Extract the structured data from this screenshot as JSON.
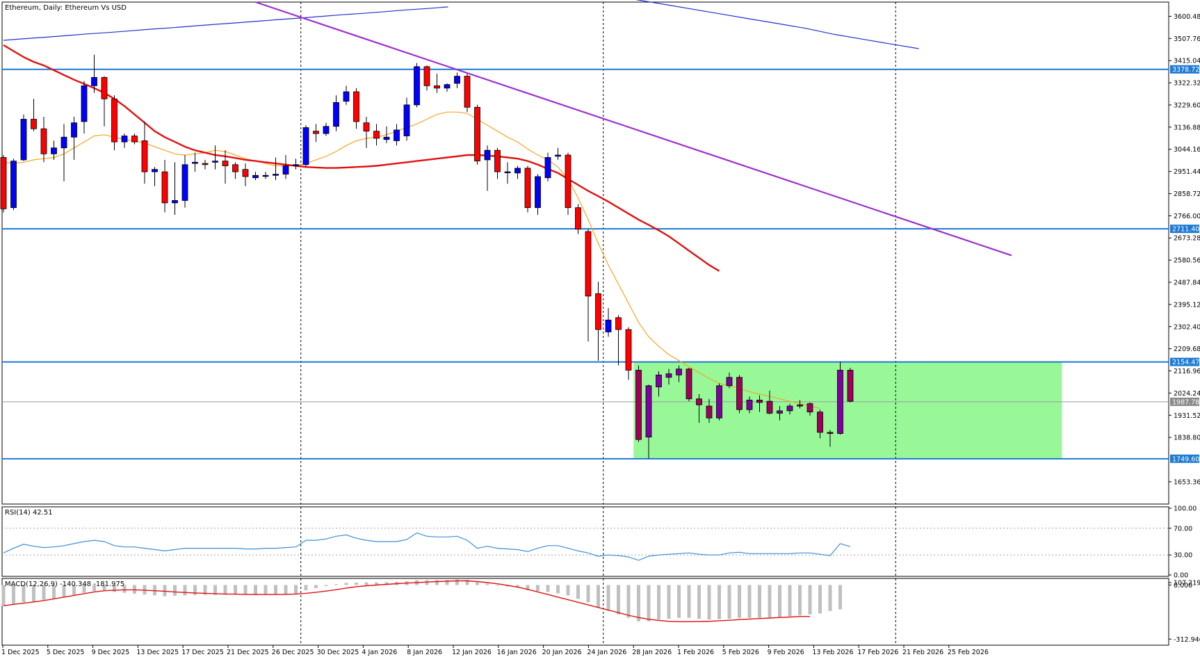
{
  "header": {
    "title": "Ethereum, Daily:  Ethereum Vs USD"
  },
  "colors": {
    "bull": "#0000ff",
    "bear": "#ff0000",
    "bull_zone": "#8000a0",
    "bear_zone": "#a0005a",
    "ma_fast": "#f5a623",
    "ma_slow": "#e01010",
    "ma_long": "#2030c8",
    "trendline": "#9a30d0",
    "level": "#1e7ad2",
    "zone": "#98f898",
    "rsi": "#3a8fd8",
    "macd_hist": "#c0c0c0",
    "macd_signal": "#e01010",
    "price_tag": "#1e7ad2"
  },
  "chart_data": [
    {
      "type": "candlestick",
      "title": "Ethereum, Daily:  Ethereum Vs USD",
      "ylim": [
        1560,
        3660
      ],
      "y_ticks": [
        "3600.48",
        "3507.76",
        "3415.04",
        "3322.32",
        "3229.60",
        "3136.88",
        "3044.16",
        "2951.44",
        "2858.72",
        "2766.00",
        "2673.28",
        "2580.56",
        "2487.84",
        "2395.12",
        "2302.40",
        "2209.68",
        "2116.96",
        "2024.24",
        "1931.52",
        "1838.80",
        "1653.36"
      ],
      "x_tick_labels": [
        "1 Dec 2025",
        "5 Dec 2025",
        "9 Dec 2025",
        "13 Dec 2025",
        "17 Dec 2025",
        "21 Dec 2025",
        "26 Dec 2025",
        "30 Dec 2025",
        "4 Jan 2026",
        "8 Jan 2026",
        "12 Jan 2026",
        "16 Jan 2026",
        "20 Jan 2026",
        "24 Jan 2026",
        "28 Jan 2026",
        "1 Feb 2026",
        "5 Feb 2026",
        "9 Feb 2026",
        "13 Feb 2026",
        "17 Feb 2026",
        "21 Feb 2026",
        "25 Feb 2026"
      ],
      "candles": [
        {
          "o": 3010,
          "h": 3020,
          "l": 2780,
          "c": 2795
        },
        {
          "o": 2800,
          "h": 3005,
          "l": 2790,
          "c": 2995
        },
        {
          "o": 3000,
          "h": 3190,
          "l": 2995,
          "c": 3170
        },
        {
          "o": 3170,
          "h": 3255,
          "l": 3120,
          "c": 3130
        },
        {
          "o": 3130,
          "h": 3180,
          "l": 2990,
          "c": 3025
        },
        {
          "o": 3025,
          "h": 3080,
          "l": 3000,
          "c": 3050
        },
        {
          "o": 3050,
          "h": 3150,
          "l": 2910,
          "c": 3095
        },
        {
          "o": 3095,
          "h": 3180,
          "l": 3000,
          "c": 3155
        },
        {
          "o": 3160,
          "h": 3330,
          "l": 3110,
          "c": 3310
        },
        {
          "o": 3310,
          "h": 3440,
          "l": 3280,
          "c": 3345
        },
        {
          "o": 3345,
          "h": 3350,
          "l": 3140,
          "c": 3255
        },
        {
          "o": 3255,
          "h": 3270,
          "l": 3040,
          "c": 3075
        },
        {
          "o": 3075,
          "h": 3110,
          "l": 3050,
          "c": 3100
        },
        {
          "o": 3100,
          "h": 3110,
          "l": 3065,
          "c": 3075
        },
        {
          "o": 3080,
          "h": 3160,
          "l": 2900,
          "c": 2950
        },
        {
          "o": 2950,
          "h": 2970,
          "l": 2890,
          "c": 2960
        },
        {
          "o": 2950,
          "h": 3000,
          "l": 2780,
          "c": 2820
        },
        {
          "o": 2820,
          "h": 2990,
          "l": 2770,
          "c": 2830
        },
        {
          "o": 2830,
          "h": 3020,
          "l": 2800,
          "c": 2980
        },
        {
          "o": 2985,
          "h": 3030,
          "l": 2950,
          "c": 2990
        },
        {
          "o": 2985,
          "h": 3000,
          "l": 2960,
          "c": 2980
        },
        {
          "o": 2990,
          "h": 3060,
          "l": 2960,
          "c": 2995
        },
        {
          "o": 2995,
          "h": 3040,
          "l": 2900,
          "c": 2975
        },
        {
          "o": 2980,
          "h": 2990,
          "l": 2920,
          "c": 2950
        },
        {
          "o": 2960,
          "h": 2985,
          "l": 2890,
          "c": 2930
        },
        {
          "o": 2925,
          "h": 2950,
          "l": 2915,
          "c": 2935
        },
        {
          "o": 2935,
          "h": 2950,
          "l": 2920,
          "c": 2935
        },
        {
          "o": 2935,
          "h": 3010,
          "l": 2915,
          "c": 2940
        },
        {
          "o": 2940,
          "h": 3020,
          "l": 2920,
          "c": 2975
        },
        {
          "o": 2975,
          "h": 3005,
          "l": 2960,
          "c": 2980
        },
        {
          "o": 2980,
          "h": 3145,
          "l": 2970,
          "c": 3135
        },
        {
          "o": 3120,
          "h": 3150,
          "l": 3075,
          "c": 3110
        },
        {
          "o": 3110,
          "h": 3155,
          "l": 3100,
          "c": 3140
        },
        {
          "o": 3140,
          "h": 3270,
          "l": 3120,
          "c": 3240
        },
        {
          "o": 3245,
          "h": 3310,
          "l": 3230,
          "c": 3285
        },
        {
          "o": 3285,
          "h": 3300,
          "l": 3130,
          "c": 3160
        },
        {
          "o": 3155,
          "h": 3180,
          "l": 3050,
          "c": 3120
        },
        {
          "o": 3120,
          "h": 3150,
          "l": 3060,
          "c": 3090
        },
        {
          "o": 3085,
          "h": 3140,
          "l": 3070,
          "c": 3095
        },
        {
          "o": 3080,
          "h": 3150,
          "l": 3060,
          "c": 3125
        },
        {
          "o": 3100,
          "h": 3260,
          "l": 3080,
          "c": 3230
        },
        {
          "o": 3230,
          "h": 3405,
          "l": 3220,
          "c": 3390
        },
        {
          "o": 3390,
          "h": 3395,
          "l": 3290,
          "c": 3310
        },
        {
          "o": 3310,
          "h": 3360,
          "l": 3280,
          "c": 3300
        },
        {
          "o": 3300,
          "h": 3320,
          "l": 3285,
          "c": 3315
        },
        {
          "o": 3320,
          "h": 3365,
          "l": 3300,
          "c": 3350
        },
        {
          "o": 3350,
          "h": 3360,
          "l": 3200,
          "c": 3220
        },
        {
          "o": 3220,
          "h": 3230,
          "l": 2980,
          "c": 2995
        },
        {
          "o": 3000,
          "h": 3060,
          "l": 2870,
          "c": 3040
        },
        {
          "o": 3040,
          "h": 3050,
          "l": 2920,
          "c": 2950
        },
        {
          "o": 2950,
          "h": 2990,
          "l": 2900,
          "c": 2950
        },
        {
          "o": 2945,
          "h": 2975,
          "l": 2920,
          "c": 2965
        },
        {
          "o": 2965,
          "h": 2975,
          "l": 2780,
          "c": 2800
        },
        {
          "o": 2800,
          "h": 2940,
          "l": 2770,
          "c": 2930
        },
        {
          "o": 2925,
          "h": 3030,
          "l": 2910,
          "c": 3010
        },
        {
          "o": 3015,
          "h": 3050,
          "l": 3000,
          "c": 3020
        },
        {
          "o": 3020,
          "h": 3030,
          "l": 2770,
          "c": 2800
        },
        {
          "o": 2800,
          "h": 2815,
          "l": 2690,
          "c": 2710
        },
        {
          "o": 2700,
          "h": 2710,
          "l": 2240,
          "c": 2430
        },
        {
          "o": 2440,
          "h": 2490,
          "l": 2160,
          "c": 2290
        },
        {
          "o": 2280,
          "h": 2380,
          "l": 2260,
          "c": 2330
        },
        {
          "o": 2340,
          "h": 2350,
          "l": 2140,
          "c": 2290
        },
        {
          "o": 2290,
          "h": 2300,
          "l": 2080,
          "c": 2120
        },
        {
          "o": 2120,
          "h": 2140,
          "l": 1820,
          "c": 1830
        },
        {
          "o": 1840,
          "h": 2060,
          "l": 1750,
          "c": 2055
        },
        {
          "o": 2050,
          "h": 2115,
          "l": 2010,
          "c": 2100
        },
        {
          "o": 2090,
          "h": 2125,
          "l": 2060,
          "c": 2105
        },
        {
          "o": 2100,
          "h": 2140,
          "l": 2070,
          "c": 2125
        },
        {
          "o": 2125,
          "h": 2130,
          "l": 1990,
          "c": 2000
        },
        {
          "o": 2000,
          "h": 2020,
          "l": 1900,
          "c": 1975
        },
        {
          "o": 1970,
          "h": 2000,
          "l": 1900,
          "c": 1920
        },
        {
          "o": 1920,
          "h": 2065,
          "l": 1910,
          "c": 2055
        },
        {
          "o": 2055,
          "h": 2110,
          "l": 2045,
          "c": 2090
        },
        {
          "o": 2090,
          "h": 2100,
          "l": 1940,
          "c": 1955
        },
        {
          "o": 1955,
          "h": 2010,
          "l": 1940,
          "c": 1995
        },
        {
          "o": 1995,
          "h": 2015,
          "l": 1945,
          "c": 1985
        },
        {
          "o": 1990,
          "h": 2035,
          "l": 1935,
          "c": 1940
        },
        {
          "o": 1940,
          "h": 1970,
          "l": 1910,
          "c": 1950
        },
        {
          "o": 1950,
          "h": 1980,
          "l": 1935,
          "c": 1970
        },
        {
          "o": 1970,
          "h": 1995,
          "l": 1960,
          "c": 1975
        },
        {
          "o": 1980,
          "h": 1985,
          "l": 1930,
          "c": 1945
        },
        {
          "o": 1945,
          "h": 1955,
          "l": 1835,
          "c": 1860
        },
        {
          "o": 1860,
          "h": 1870,
          "l": 1800,
          "c": 1855
        },
        {
          "o": 1855,
          "h": 2155,
          "l": 1850,
          "c": 2120
        },
        {
          "o": 2120,
          "h": 2130,
          "l": 1985,
          "c": 1990
        }
      ],
      "ma_fast": [
        2990,
        2985,
        2990,
        3000,
        3005,
        3010,
        3025,
        3050,
        3075,
        3100,
        3105,
        3095,
        3085,
        3080,
        3070,
        3055,
        3040,
        3025,
        3020,
        3025,
        3030,
        3040,
        3035,
        3020,
        3005,
        2995,
        2985,
        2975,
        2975,
        2975,
        2985,
        3000,
        3015,
        3035,
        3060,
        3080,
        3090,
        3095,
        3105,
        3120,
        3135,
        3150,
        3170,
        3190,
        3200,
        3200,
        3195,
        3170,
        3145,
        3120,
        3095,
        3075,
        3045,
        3020,
        3000,
        2970,
        2920,
        2840,
        2750,
        2650,
        2560,
        2480,
        2400,
        2320,
        2260,
        2220,
        2185,
        2160,
        2135,
        2110,
        2085,
        2065,
        2055,
        2045,
        2030,
        2020,
        2010,
        2000,
        1990,
        1980,
        1970,
        1960
      ],
      "ma_slow": [
        3480,
        3455,
        3430,
        3410,
        3395,
        3375,
        3355,
        3335,
        3318,
        3300,
        3280,
        3255,
        3225,
        3190,
        3155,
        3120,
        3095,
        3075,
        3055,
        3040,
        3030,
        3020,
        3015,
        3008,
        3000,
        2995,
        2990,
        2985,
        2980,
        2975,
        2970,
        2968,
        2966,
        2966,
        2968,
        2970,
        2972,
        2975,
        2980,
        2985,
        2990,
        2995,
        3000,
        3005,
        3010,
        3015,
        3020,
        3020,
        3018,
        3015,
        3010,
        3005,
        2995,
        2980,
        2962,
        2945,
        2920,
        2895,
        2870,
        2848,
        2825,
        2800,
        2775,
        2750,
        2728,
        2705,
        2680,
        2650,
        2620,
        2590,
        2560,
        2535
      ],
      "ma_long_segments": [
        {
          "from": 0,
          "points": [
            3500,
            3507,
            3513,
            3520,
            3527,
            3533,
            3540,
            3547,
            3553,
            3560,
            3567,
            3573,
            3580,
            3587,
            3593,
            3600,
            3607,
            3613,
            3620,
            3627,
            3633,
            3640
          ]
        },
        {
          "from": 60,
          "points": [
            3690,
            3670,
            3650,
            3630,
            3610,
            3590,
            3570,
            3550,
            3525,
            3505,
            3485,
            3465
          ]
        }
      ],
      "trendline": [
        [
          25,
          3660
        ],
        [
          100,
          2600
        ]
      ],
      "levels": [
        {
          "value": 3378.72,
          "label": "3378.72"
        },
        {
          "value": 2711.4,
          "label": "2711.40"
        },
        {
          "value": 2154.47,
          "label": "2154.47"
        },
        {
          "value": 1749.6,
          "label": "1749.60"
        }
      ],
      "current_price": {
        "value": 1987.78,
        "label": "1987.78"
      },
      "zone": {
        "from_index": 62.5,
        "to_index": 105,
        "y_low": 1749.6,
        "y_high": 2154.47
      }
    },
    {
      "type": "line",
      "title": "RSI(14) 42.51",
      "ylim": [
        0,
        100
      ],
      "y_ticks": [
        "100.00",
        "70.00",
        "30.00",
        "0.00"
      ],
      "levels": [
        70,
        30
      ],
      "values": [
        33,
        40,
        46,
        43,
        41,
        42,
        44,
        47,
        50,
        52,
        50,
        44,
        42,
        42,
        40,
        38,
        36,
        38,
        40,
        40,
        40,
        40,
        40,
        40,
        39,
        39,
        40,
        40,
        41,
        42,
        52,
        52,
        54,
        58,
        60,
        55,
        52,
        50,
        50,
        50,
        53,
        63,
        58,
        57,
        57,
        58,
        52,
        40,
        43,
        40,
        39,
        38,
        35,
        40,
        44,
        44,
        40,
        36,
        33,
        28,
        30,
        29,
        27,
        22,
        28,
        30,
        31,
        32,
        33,
        31,
        30,
        30,
        33,
        34,
        32,
        32,
        32,
        32,
        32,
        33,
        33,
        31,
        29,
        47,
        42.51
      ]
    },
    {
      "type": "bar",
      "title": "MACD(12,26,9) -140.348 -181.975",
      "ylim": [
        -340,
        30
      ],
      "y_ticks": [
        "107.219",
        "0.000",
        "-312.946"
      ],
      "histogram": [
        -120,
        -110,
        -100,
        -95,
        -85,
        -80,
        -70,
        -60,
        -45,
        -35,
        -35,
        -40,
        -45,
        -50,
        -55,
        -60,
        -65,
        -62,
        -60,
        -58,
        -57,
        -57,
        -56,
        -56,
        -57,
        -58,
        -57,
        -56,
        -54,
        -52,
        -30,
        -18,
        -6,
        5,
        12,
        14,
        15,
        15,
        16,
        18,
        22,
        28,
        28,
        28,
        29,
        32,
        30,
        15,
        8,
        0,
        -8,
        -15,
        -30,
        -35,
        -40,
        -48,
        -60,
        -80,
        -100,
        -130,
        -150,
        -170,
        -190,
        -210,
        -210,
        -200,
        -195,
        -190,
        -190,
        -195,
        -200,
        -198,
        -195,
        -190,
        -190,
        -190,
        -188,
        -185,
        -180,
        -175,
        -170,
        -165,
        -150,
        -140.348
      ],
      "signal": [
        -120,
        -112,
        -105,
        -98,
        -90,
        -80,
        -70,
        -60,
        -50,
        -40,
        -33,
        -30,
        -28,
        -28,
        -30,
        -33,
        -36,
        -40,
        -43,
        -46,
        -48,
        -50,
        -52,
        -53,
        -54,
        -55,
        -55,
        -55,
        -54,
        -52,
        -48,
        -42,
        -35,
        -27,
        -18,
        -10,
        -4,
        0,
        4,
        8,
        11,
        14,
        17,
        20,
        22,
        24,
        24,
        20,
        14,
        7,
        -2,
        -12,
        -25,
        -40,
        -55,
        -70,
        -85,
        -100,
        -115,
        -130,
        -145,
        -160,
        -175,
        -188,
        -198,
        -205,
        -210,
        -212,
        -212,
        -211,
        -210,
        -207,
        -204,
        -200,
        -197,
        -194,
        -191,
        -188,
        -185,
        -182,
        -181.975
      ]
    }
  ]
}
